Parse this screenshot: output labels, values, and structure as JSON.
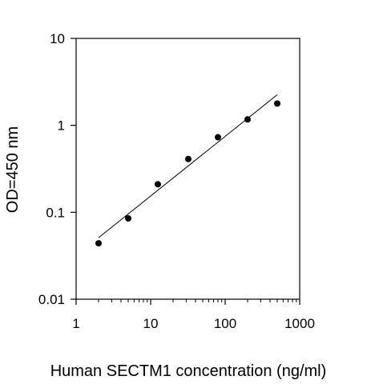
{
  "chart_data": {
    "type": "scatter",
    "x_scale": "log",
    "y_scale": "log",
    "xlim": [
      1,
      1000
    ],
    "ylim": [
      0.01,
      10
    ],
    "xlabel": "Human SECTM1 concentration (ng/ml)",
    "ylabel": "OD=450 nm",
    "x_ticks": [
      1,
      10,
      100,
      1000
    ],
    "x_tick_labels": [
      "1",
      "10",
      "100",
      "1000"
    ],
    "y_ticks": [
      0.01,
      0.1,
      1,
      10
    ],
    "y_tick_labels": [
      "0.01",
      "0.1",
      "1",
      "10"
    ],
    "grid": false,
    "legend": "none",
    "points": [
      {
        "x": 2,
        "y": 0.044
      },
      {
        "x": 5,
        "y": 0.085
      },
      {
        "x": 12.5,
        "y": 0.21
      },
      {
        "x": 32,
        "y": 0.41
      },
      {
        "x": 80,
        "y": 0.73
      },
      {
        "x": 200,
        "y": 1.17
      },
      {
        "x": 500,
        "y": 1.78
      }
    ],
    "fit_line": {
      "x": [
        2,
        500
      ],
      "y": [
        0.051,
        2.25
      ]
    },
    "colors": {
      "points": "#000000",
      "line": "#000000",
      "axes": "#000000"
    }
  }
}
